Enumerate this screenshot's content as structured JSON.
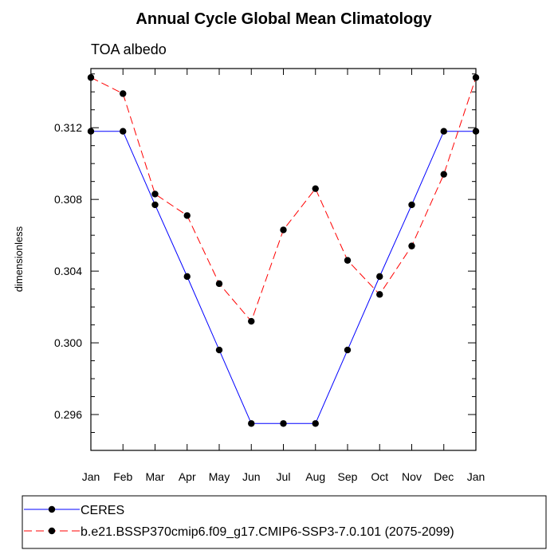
{
  "chart_data": {
    "type": "line",
    "title": "Annual Cycle Global Mean Climatology",
    "subtitle": "TOA albedo",
    "xlabel": "",
    "ylabel": "dimensionless",
    "categories": [
      "Jan",
      "Feb",
      "Mar",
      "Apr",
      "May",
      "Jun",
      "Jul",
      "Aug",
      "Sep",
      "Oct",
      "Nov",
      "Dec",
      "Jan"
    ],
    "ylim": [
      0.294,
      0.3153
    ],
    "yticks": [
      {
        "value": 0.296,
        "label": "0.296"
      },
      {
        "value": 0.3,
        "label": "0.300"
      },
      {
        "value": 0.304,
        "label": "0.304"
      },
      {
        "value": 0.308,
        "label": "0.308"
      },
      {
        "value": 0.312,
        "label": "0.312"
      }
    ],
    "series": [
      {
        "name": "CERES",
        "color": "#0000ff",
        "dash": "solid",
        "values": [
          0.3118,
          0.3118,
          0.3077,
          0.3037,
          0.2996,
          0.2955,
          0.2955,
          0.2955,
          0.2996,
          0.3037,
          0.3077,
          0.3118,
          0.3118
        ]
      },
      {
        "name": "b.e21.BSSP370cmip6.f09_g17.CMIP6-SSP3-7.0.101 (2075-2099)",
        "color": "#ff0000",
        "dash": "dashed",
        "values": [
          0.3148,
          0.3139,
          0.3083,
          0.3071,
          0.3033,
          0.3012,
          0.3063,
          0.3086,
          0.3046,
          0.3027,
          0.3054,
          0.3094,
          0.3148
        ]
      }
    ],
    "legend_position": "bottom"
  }
}
